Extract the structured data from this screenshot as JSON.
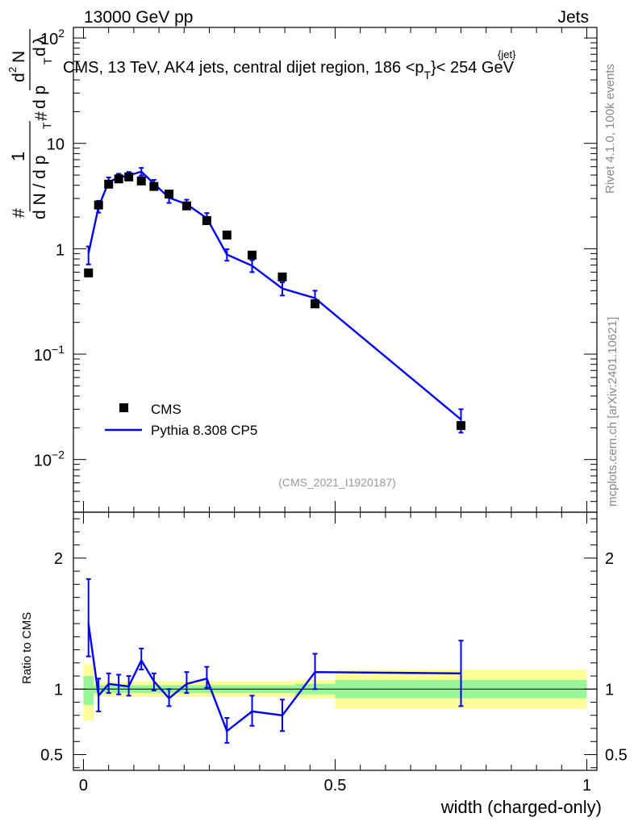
{
  "header": {
    "left": "13000 GeV pp",
    "right": "Jets"
  },
  "side_labels": {
    "rivet": "Rivet 4.1.0,  100k events",
    "mcplots": "mcplots.cern.ch [arXiv:2401.10621]"
  },
  "colors": {
    "data": "#000000",
    "mc": "#0000ee",
    "band_inner": "#99f599",
    "band_outer": "#ffff99"
  },
  "chart_data": [
    {
      "type": "scatter",
      "title": "CMS, 13 TeV, AK4 jets, central dijet region, 186 <p",
      "title_sub": "T",
      "title_sup": "{jet}",
      "title_end": "}< 254 GeV",
      "ylabel_parts": [
        "#",
        "1",
        "d N / d p",
        "T",
        "#",
        "d",
        "N",
        "d p",
        "T",
        "d",
        "λ",
        "2"
      ],
      "ylim_exp": [
        -2.5,
        2.1
      ],
      "xlim": [
        -0.02,
        1.02
      ],
      "yticks": [
        {
          "value": 100,
          "base": "10",
          "exp": "2"
        },
        {
          "value": 10,
          "base": "10",
          "exp": ""
        },
        {
          "value": 1,
          "base": "1",
          "exp": ""
        },
        {
          "value": 0.1,
          "base": "10",
          "exp": "−1"
        },
        {
          "value": 0.01,
          "base": "10",
          "exp": "−2"
        }
      ],
      "watermark": "(CMS_2021_I1920187)",
      "legend": [
        {
          "name": "CMS",
          "kind": "marker"
        },
        {
          "name": "Pythia 8.308 CP5",
          "kind": "line"
        }
      ],
      "series": [
        {
          "name": "CMS",
          "x": [
            0.01,
            0.03,
            0.05,
            0.07,
            0.09,
            0.115,
            0.14,
            0.17,
            0.205,
            0.245,
            0.285,
            0.335,
            0.395,
            0.46,
            0.75
          ],
          "y": [
            0.59,
            2.6,
            4.1,
            4.6,
            4.8,
            4.4,
            3.9,
            3.3,
            2.55,
            1.85,
            1.35,
            0.87,
            0.54,
            0.3,
            0.021
          ]
        },
        {
          "name": "Pythia 8.308 CP5",
          "x": [
            0.01,
            0.03,
            0.05,
            0.07,
            0.09,
            0.115,
            0.14,
            0.17,
            0.205,
            0.245,
            0.285,
            0.335,
            0.395,
            0.46,
            0.75
          ],
          "y": [
            0.9,
            2.5,
            4.3,
            4.75,
            4.95,
            5.4,
            4.15,
            3.05,
            2.65,
            1.95,
            0.88,
            0.69,
            0.42,
            0.34,
            0.024
          ],
          "err_lo": [
            0.71,
            2.2,
            3.85,
            4.35,
            4.55,
            4.95,
            3.8,
            2.72,
            2.38,
            1.72,
            0.77,
            0.6,
            0.36,
            0.29,
            0.018
          ],
          "err_hi": [
            1.05,
            2.85,
            4.75,
            5.15,
            5.35,
            5.85,
            4.5,
            3.38,
            2.92,
            2.18,
            0.99,
            0.78,
            0.48,
            0.4,
            0.03
          ]
        }
      ]
    },
    {
      "type": "line",
      "ylabel": "Ratio to CMS",
      "xlabel": "width (charged-only)",
      "xlim": [
        -0.02,
        1.02
      ],
      "ylim": [
        0.38,
        2.35
      ],
      "yticks": [
        {
          "value": 0.5,
          "label": "0.5"
        },
        {
          "value": 1,
          "label": "1"
        },
        {
          "value": 2,
          "label": "2"
        }
      ],
      "xticks": [
        {
          "value": 0,
          "label": "0"
        },
        {
          "value": 0.5,
          "label": "0.5"
        },
        {
          "value": 1,
          "label": "1"
        }
      ],
      "bands": [
        {
          "x0": 0.0,
          "x1": 0.02,
          "outer": [
            0.76,
            1.19
          ],
          "inner": [
            0.88,
            1.1
          ]
        },
        {
          "x0": 0.02,
          "x1": 0.04,
          "outer": [
            0.95,
            1.05
          ],
          "inner": [
            0.97,
            1.03
          ]
        },
        {
          "x0": 0.04,
          "x1": 0.42,
          "outer": [
            0.94,
            1.06
          ],
          "inner": [
            0.97,
            1.03
          ]
        },
        {
          "x0": 0.42,
          "x1": 0.5,
          "outer": [
            0.93,
            1.07
          ],
          "inner": [
            0.96,
            1.04
          ]
        },
        {
          "x0": 0.5,
          "x1": 1.0,
          "outer": [
            0.85,
            1.15
          ],
          "inner": [
            0.93,
            1.07
          ]
        }
      ],
      "series": [
        {
          "name": "Pythia 8.308 CP5",
          "x": [
            0.01,
            0.03,
            0.05,
            0.07,
            0.09,
            0.115,
            0.14,
            0.17,
            0.205,
            0.245,
            0.285,
            0.335,
            0.395,
            0.46,
            0.75
          ],
          "y": [
            1.5,
            0.95,
            1.04,
            1.03,
            1.02,
            1.22,
            1.06,
            0.93,
            1.04,
            1.08,
            0.68,
            0.83,
            0.8,
            1.13,
            1.12
          ],
          "err_lo": [
            1.25,
            0.83,
            0.97,
            0.96,
            0.95,
            1.15,
            0.99,
            0.87,
            0.97,
            1.01,
            0.59,
            0.72,
            0.68,
            1.0,
            0.87
          ],
          "err_hi": [
            1.84,
            1.08,
            1.12,
            1.11,
            1.1,
            1.31,
            1.12,
            1.0,
            1.13,
            1.17,
            0.78,
            0.95,
            0.92,
            1.27,
            1.37
          ]
        }
      ]
    }
  ]
}
